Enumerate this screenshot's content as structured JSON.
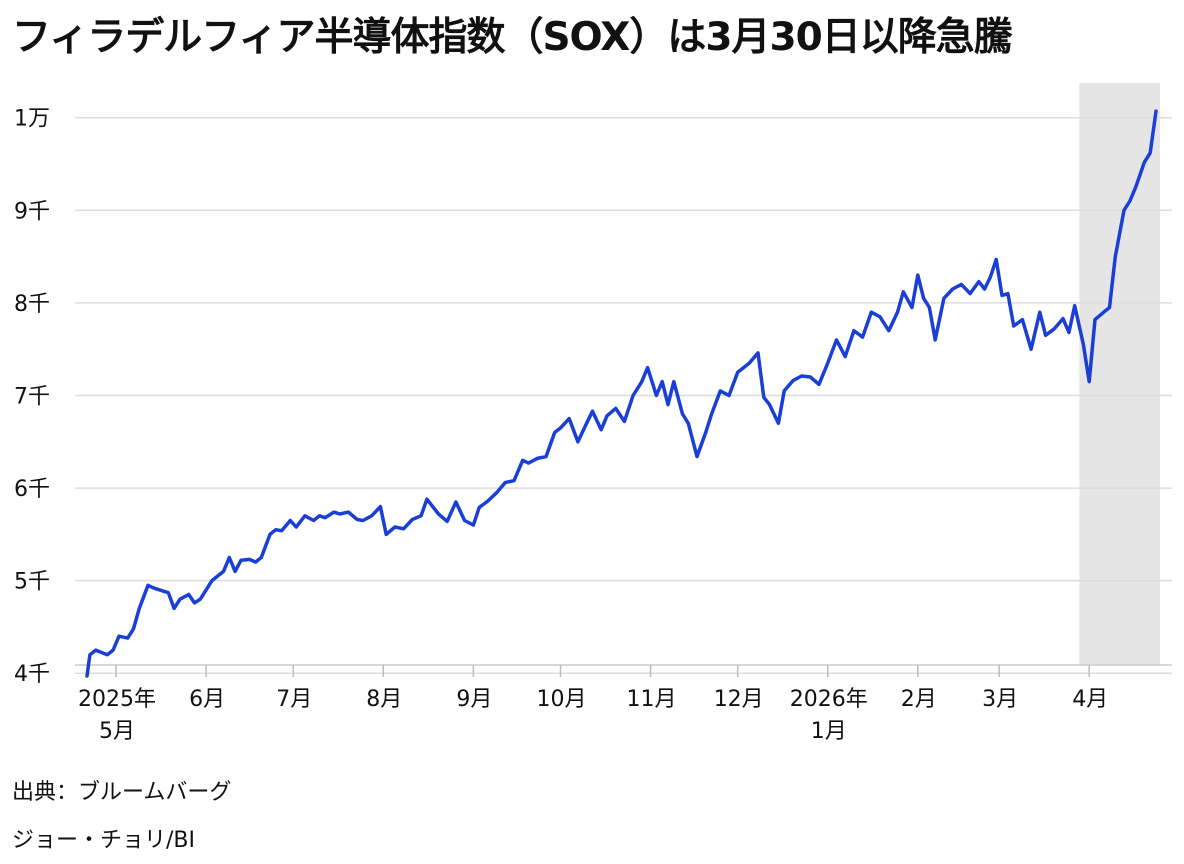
{
  "title": "フィラデルフィア半導体指数（SOX）は3月30日以降急騰",
  "source": "出典：ブルームバーグ",
  "credit": "ジョー・チョリ/BI",
  "colors": {
    "line": "#1a3fd6",
    "highlight": "#e5e5e5",
    "grid": "#dddddd"
  },
  "chart_data": {
    "type": "line",
    "title": "フィラデルフィア半導体指数（SOX）は3月30日以降急騰",
    "ylim": [
      3900,
      10200
    ],
    "y_ticks": [
      {
        "value": 4000,
        "label": "4千"
      },
      {
        "value": 5000,
        "label": "5千"
      },
      {
        "value": 6000,
        "label": "6千"
      },
      {
        "value": 7000,
        "label": "7千"
      },
      {
        "value": 8000,
        "label": "8千"
      },
      {
        "value": 9000,
        "label": "9千"
      },
      {
        "value": 10000,
        "label": "1万"
      }
    ],
    "x_ticks": [
      {
        "date": "2025-05-01",
        "label": [
          "2025年",
          "5月"
        ]
      },
      {
        "date": "2025-06-01",
        "label": [
          "6月"
        ]
      },
      {
        "date": "2025-07-01",
        "label": [
          "7月"
        ]
      },
      {
        "date": "2025-08-01",
        "label": [
          "8月"
        ]
      },
      {
        "date": "2025-09-01",
        "label": [
          "9月"
        ]
      },
      {
        "date": "2025-10-01",
        "label": [
          "10月"
        ]
      },
      {
        "date": "2025-11-01",
        "label": [
          "11月"
        ]
      },
      {
        "date": "2025-12-01",
        "label": [
          "12月"
        ]
      },
      {
        "date": "2026-01-01",
        "label": [
          "2026年",
          "1月"
        ]
      },
      {
        "date": "2026-02-01",
        "label": [
          "2月"
        ]
      },
      {
        "date": "2026-03-01",
        "label": [
          "3月"
        ]
      },
      {
        "date": "2026-04-01",
        "label": [
          "4月"
        ]
      }
    ],
    "highlight": {
      "from": "2026-03-30",
      "to": "2026-04-24"
    },
    "grid": true,
    "series": [
      {
        "x": [
          "2025-04-21",
          "2025-04-22",
          "2025-04-24",
          "2025-04-28",
          "2025-04-30",
          "2025-05-02",
          "2025-05-05",
          "2025-05-07",
          "2025-05-09",
          "2025-05-12",
          "2025-05-14",
          "2025-05-16",
          "2025-05-19",
          "2025-05-21",
          "2025-05-23",
          "2025-05-26",
          "2025-05-28",
          "2025-05-30",
          "2025-06-03",
          "2025-06-05",
          "2025-06-07",
          "2025-06-09",
          "2025-06-11",
          "2025-06-13",
          "2025-06-16",
          "2025-06-18",
          "2025-06-20",
          "2025-06-23",
          "2025-06-25",
          "2025-06-27",
          "2025-06-30",
          "2025-07-02",
          "2025-07-05",
          "2025-07-08",
          "2025-07-10",
          "2025-07-12",
          "2025-07-15",
          "2025-07-17",
          "2025-07-20",
          "2025-07-23",
          "2025-07-25",
          "2025-07-28",
          "2025-07-31",
          "2025-08-02",
          "2025-08-05",
          "2025-08-08",
          "2025-08-11",
          "2025-08-14",
          "2025-08-16",
          "2025-08-20",
          "2025-08-23",
          "2025-08-26",
          "2025-08-29",
          "2025-09-01",
          "2025-09-03",
          "2025-09-06",
          "2025-09-09",
          "2025-09-12",
          "2025-09-15",
          "2025-09-18",
          "2025-09-20",
          "2025-09-23",
          "2025-09-26",
          "2025-09-29",
          "2025-10-01",
          "2025-10-04",
          "2025-10-07",
          "2025-10-10",
          "2025-10-12",
          "2025-10-15",
          "2025-10-17",
          "2025-10-20",
          "2025-10-23",
          "2025-10-26",
          "2025-10-29",
          "2025-10-31",
          "2025-11-03",
          "2025-11-05",
          "2025-11-07",
          "2025-11-09",
          "2025-11-12",
          "2025-11-14",
          "2025-11-17",
          "2025-11-20",
          "2025-11-22",
          "2025-11-25",
          "2025-11-28",
          "2025-12-01",
          "2025-12-03",
          "2025-12-05",
          "2025-12-08",
          "2025-12-10",
          "2025-12-12",
          "2025-12-15",
          "2025-12-17",
          "2025-12-20",
          "2025-12-23",
          "2025-12-26",
          "2025-12-29",
          "2026-01-01",
          "2026-01-04",
          "2026-01-07",
          "2026-01-10",
          "2026-01-13",
          "2026-01-16",
          "2026-01-19",
          "2026-01-22",
          "2026-01-25",
          "2026-01-27",
          "2026-01-30",
          "2026-02-01",
          "2026-02-03",
          "2026-02-05",
          "2026-02-07",
          "2026-02-10",
          "2026-02-13",
          "2026-02-16",
          "2026-02-19",
          "2026-02-22",
          "2026-02-24",
          "2026-02-26",
          "2026-02-28",
          "2026-03-02",
          "2026-03-04",
          "2026-03-06",
          "2026-03-09",
          "2026-03-12",
          "2026-03-15",
          "2026-03-17",
          "2026-03-20",
          "2026-03-23",
          "2026-03-25",
          "2026-03-27",
          "2026-03-30",
          "2026-04-01",
          "2026-04-03",
          "2026-04-06",
          "2026-04-08",
          "2026-04-10",
          "2026-04-13",
          "2026-04-15",
          "2026-04-17",
          "2026-04-20",
          "2026-04-22",
          "2026-04-24"
        ],
        "y": [
          3970,
          4200,
          4250,
          4200,
          4250,
          4400,
          4380,
          4480,
          4700,
          4950,
          4920,
          4900,
          4870,
          4700,
          4800,
          4850,
          4760,
          4800,
          5000,
          5050,
          5100,
          5250,
          5100,
          5220,
          5230,
          5200,
          5250,
          5500,
          5550,
          5540,
          5650,
          5580,
          5700,
          5650,
          5700,
          5680,
          5740,
          5720,
          5740,
          5660,
          5650,
          5700,
          5800,
          5500,
          5580,
          5560,
          5660,
          5700,
          5880,
          5720,
          5640,
          5850,
          5650,
          5600,
          5790,
          5860,
          5950,
          6060,
          6080,
          6300,
          6270,
          6320,
          6340,
          6600,
          6650,
          6750,
          6500,
          6700,
          6830,
          6630,
          6780,
          6860,
          6720,
          7000,
          7150,
          7300,
          7000,
          7150,
          6900,
          7150,
          6800,
          6700,
          6340,
          6600,
          6800,
          7050,
          7000,
          7250,
          7300,
          7350,
          7460,
          6980,
          6900,
          6700,
          7050,
          7160,
          7210,
          7200,
          7120,
          7350,
          7600,
          7420,
          7700,
          7630,
          7900,
          7850,
          7700,
          7900,
          8120,
          7950,
          8300,
          8050,
          7950,
          7600,
          8050,
          8150,
          8200,
          8100,
          8230,
          8150,
          8280,
          8470,
          8080,
          8100,
          7750,
          7820,
          7500,
          7900,
          7650,
          7720,
          7830,
          7680,
          7970,
          7550,
          7150,
          7820,
          7900,
          7950,
          8500,
          9000,
          9100,
          9250,
          9520,
          9620,
          10070
        ]
      }
    ]
  }
}
